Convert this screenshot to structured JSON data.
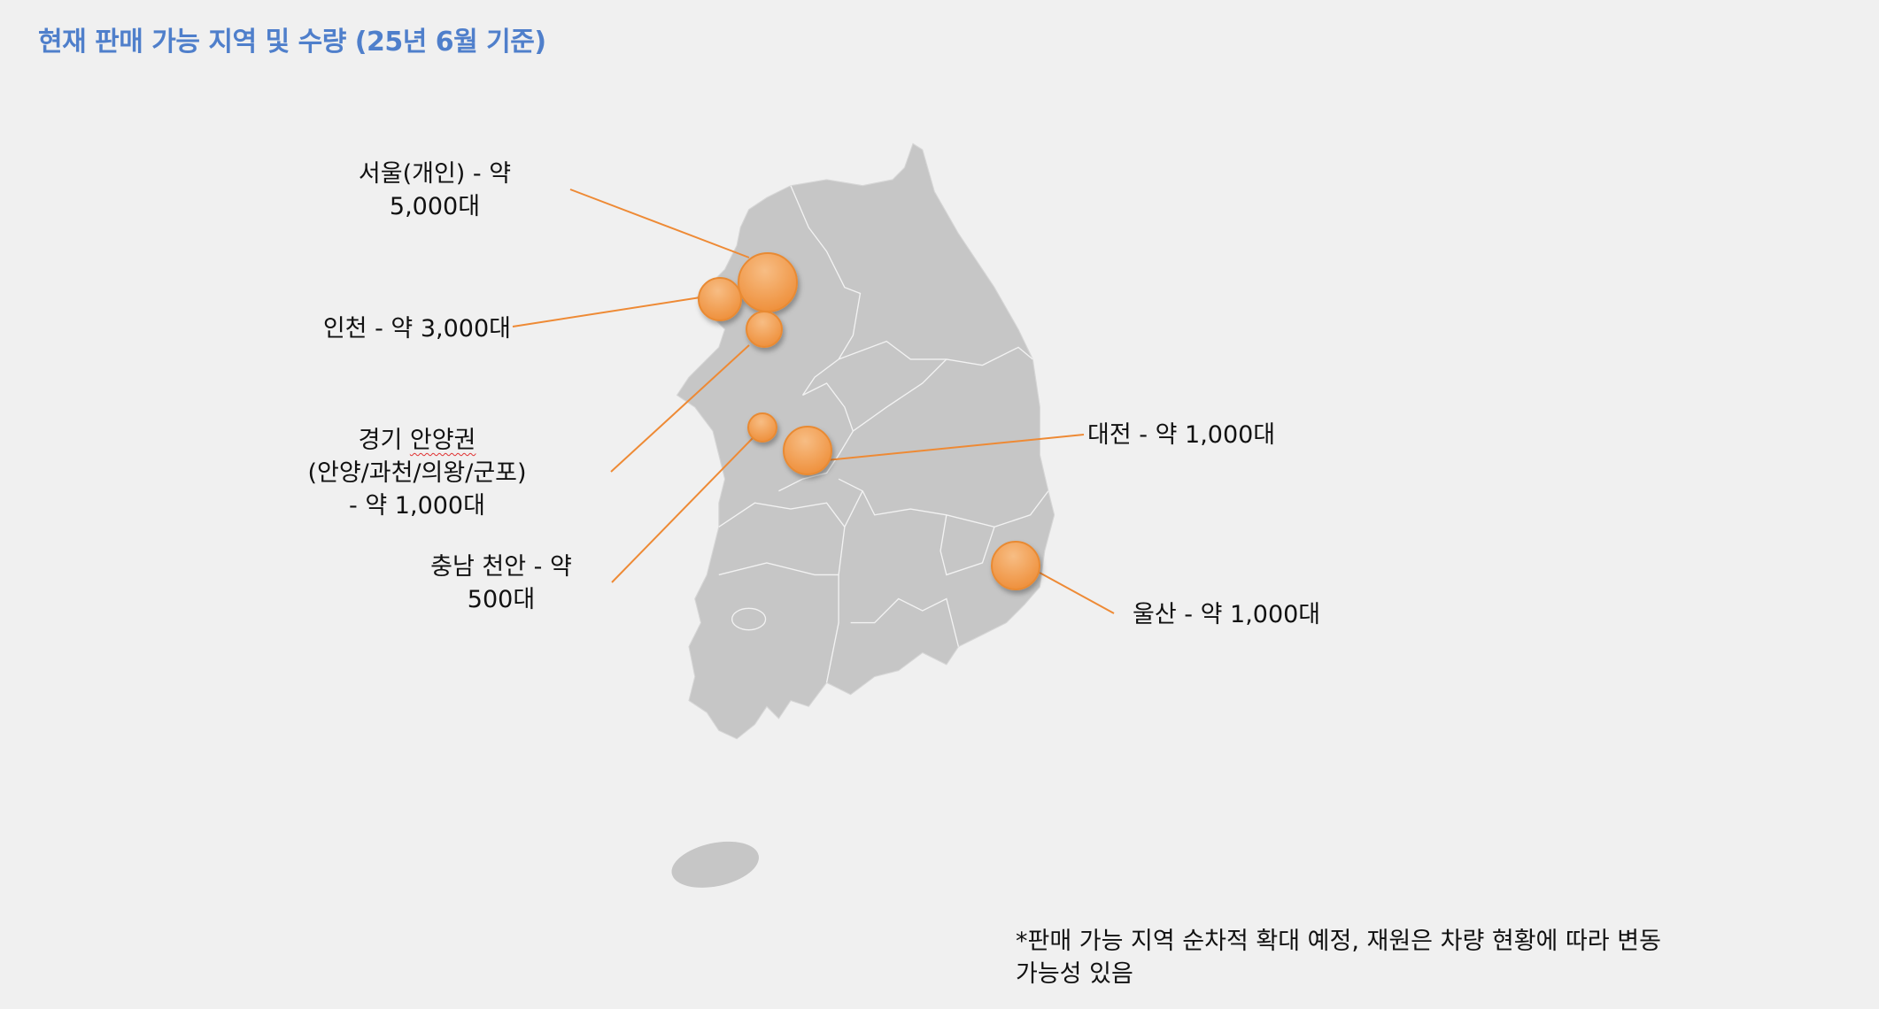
{
  "title": "현재 판매 가능 지역 및 수량 (25년 6월 기준)",
  "colors": {
    "title": "#4f7fcb",
    "map_fill": "#c6c6c6",
    "bubble": "#f0953f",
    "leader_line": "#ee8a35",
    "background": "#f0f0f0"
  },
  "regions": {
    "seoul": {
      "line1": "서울(개인) - 약",
      "line2": "5,000대",
      "quantity": 5000
    },
    "incheon": {
      "line1": "인천 - 약 3,000대",
      "quantity": 3000
    },
    "anyang": {
      "line1a": "경기 ",
      "line1b": "안양권",
      "line2": "(안양/과천/의왕/군포)",
      "line3": "- 약 1,000대",
      "quantity": 1000
    },
    "cheonan": {
      "line1": "충남 천안 - 약",
      "line2": "500대",
      "quantity": 500
    },
    "daejeon": {
      "line1": "대전 - 약 1,000대",
      "quantity": 1000
    },
    "ulsan": {
      "line1": "울산 - 약 1,000대",
      "quantity": 1000
    }
  },
  "footnote": {
    "line1": "*판매 가능 지역 순차적 확대 예정, 재원은 차량 현황에 따라 변동",
    "line2": "가능성 있음"
  }
}
